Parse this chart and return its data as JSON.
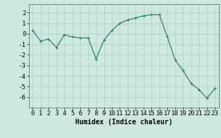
{
  "x": [
    0,
    1,
    2,
    3,
    4,
    5,
    6,
    7,
    8,
    9,
    10,
    11,
    12,
    13,
    14,
    15,
    16,
    17,
    18,
    19,
    20,
    21,
    22,
    23
  ],
  "y": [
    0.3,
    -0.7,
    -0.5,
    -1.3,
    -0.1,
    -0.3,
    -0.4,
    -0.4,
    -2.4,
    -0.6,
    0.3,
    1.0,
    1.3,
    1.5,
    1.7,
    1.8,
    1.8,
    -0.3,
    -2.5,
    -3.5,
    -4.7,
    -5.3,
    -6.1,
    -5.2
  ],
  "line_color": "#2d7d6e",
  "marker": "+",
  "marker_color": "#2d7d6e",
  "bg_color": "#cce8e0",
  "grid_major_color": "#b8c8c0",
  "grid_minor_color": "#b8c8c0",
  "xlabel": "Humidex (Indice chaleur)",
  "xlim": [
    -0.5,
    23.5
  ],
  "ylim": [
    -7,
    2.8
  ],
  "yticks": [
    2,
    1,
    0,
    -1,
    -2,
    -3,
    -4,
    -5,
    -6
  ],
  "xticks": [
    0,
    1,
    2,
    3,
    4,
    5,
    6,
    7,
    8,
    9,
    10,
    11,
    12,
    13,
    14,
    15,
    16,
    17,
    18,
    19,
    20,
    21,
    22,
    23
  ],
  "xlabel_fontsize": 7,
  "tick_fontsize": 6.5,
  "linewidth": 0.9,
  "markersize": 3.5
}
